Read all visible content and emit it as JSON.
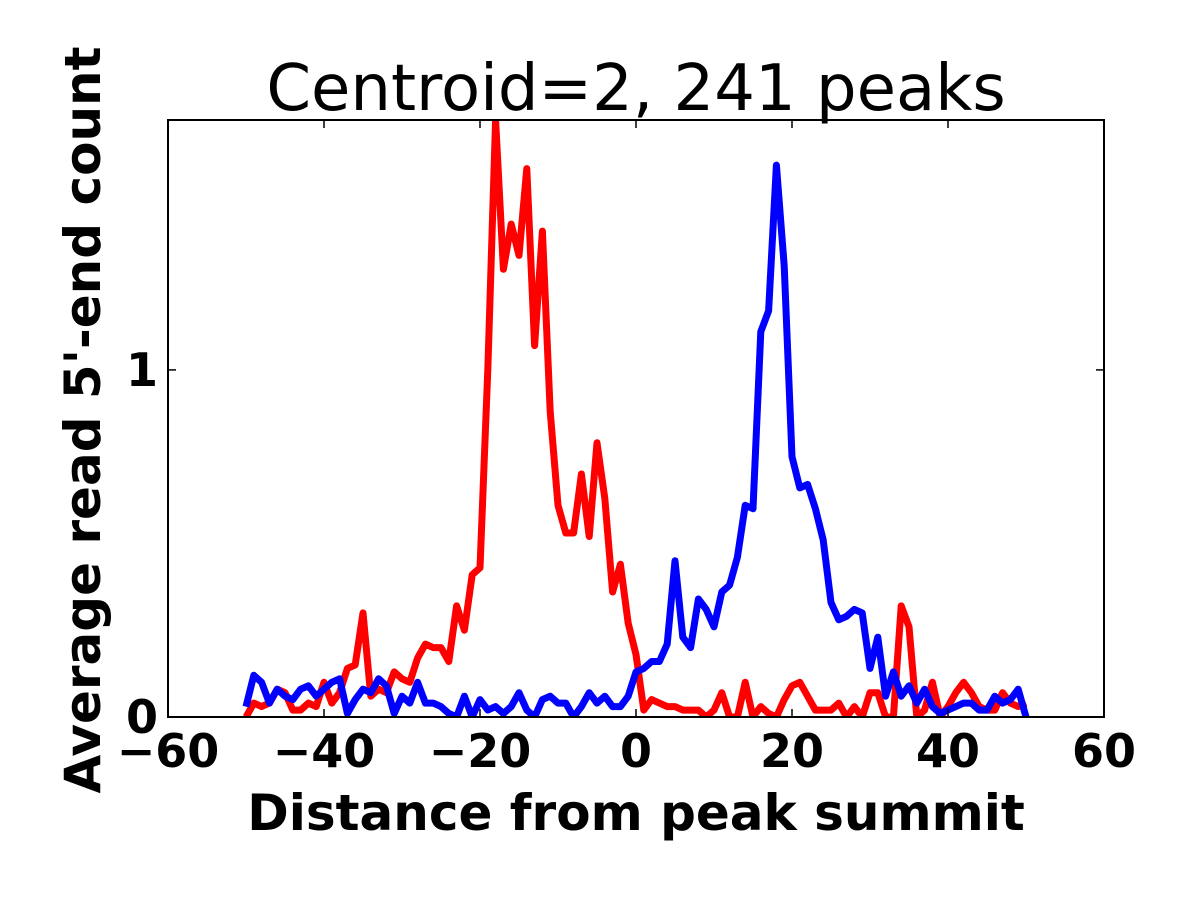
{
  "chart_data": {
    "type": "line",
    "title": "Centroid=2, 241 peaks",
    "xlabel": "Distance from peak summit",
    "ylabel": "Average read 5'-end count",
    "xlim": [
      -60,
      60
    ],
    "ylim": [
      0,
      1.72
    ],
    "x_ticks": [
      -60,
      -40,
      -20,
      0,
      20,
      40,
      60
    ],
    "x_tick_labels": [
      "−60",
      "−40",
      "−20",
      "0",
      "20",
      "40",
      "60"
    ],
    "y_ticks": [
      0,
      1
    ],
    "y_tick_labels": [
      "0",
      "1"
    ],
    "grid": false,
    "legend": "none",
    "series": [
      {
        "color": "#ff0000",
        "x": [
          -50,
          -49,
          -48,
          -47,
          -46,
          -45,
          -44,
          -43,
          -42,
          -41,
          -40,
          -39,
          -38,
          -37,
          -36,
          -35,
          -34,
          -33,
          -32,
          -31,
          -30,
          -29,
          -28,
          -27,
          -26,
          -25,
          -24,
          -23,
          -22,
          -21,
          -20,
          -19,
          -18,
          -17,
          -16,
          -15,
          -14,
          -13,
          -12,
          -11,
          -10,
          -9,
          -8,
          -7,
          -6,
          -5,
          -4,
          -3,
          -2,
          -1,
          0,
          1,
          2,
          3,
          4,
          5,
          6,
          7,
          8,
          9,
          10,
          11,
          12,
          13,
          14,
          15,
          16,
          17,
          18,
          19,
          20,
          21,
          22,
          23,
          24,
          25,
          26,
          27,
          28,
          29,
          30,
          31,
          32,
          33,
          34,
          35,
          36,
          37,
          38,
          39,
          40,
          41,
          42,
          43,
          44,
          45,
          46,
          47,
          48,
          49,
          50
        ],
        "values": [
          0.0,
          0.04,
          0.03,
          0.04,
          0.08,
          0.07,
          0.02,
          0.02,
          0.04,
          0.03,
          0.1,
          0.04,
          0.07,
          0.14,
          0.15,
          0.3,
          0.06,
          0.08,
          0.07,
          0.13,
          0.11,
          0.1,
          0.17,
          0.21,
          0.2,
          0.2,
          0.16,
          0.32,
          0.25,
          0.41,
          0.43,
          1.0,
          1.72,
          1.29,
          1.42,
          1.33,
          1.58,
          1.07,
          1.4,
          0.88,
          0.61,
          0.53,
          0.53,
          0.7,
          0.52,
          0.79,
          0.63,
          0.36,
          0.44,
          0.27,
          0.18,
          0.02,
          0.05,
          0.04,
          0.03,
          0.03,
          0.02,
          0.02,
          0.02,
          0.0,
          0.02,
          0.07,
          0.0,
          0.0,
          0.1,
          0.0,
          0.03,
          0.01,
          0.0,
          0.05,
          0.09,
          0.1,
          0.06,
          0.02,
          0.02,
          0.02,
          0.04,
          0.0,
          0.03,
          0.0,
          0.07,
          0.07,
          0.0,
          0.0,
          0.32,
          0.26,
          0.0,
          0.02,
          0.1,
          0.0,
          0.03,
          0.07,
          0.1,
          0.07,
          0.03,
          0.02,
          0.02,
          0.07,
          0.04,
          0.03,
          0.04
        ]
      },
      {
        "color": "#0000ff",
        "x": [
          -50,
          -49,
          -48,
          -47,
          -46,
          -45,
          -44,
          -43,
          -42,
          -41,
          -40,
          -39,
          -38,
          -37,
          -36,
          -35,
          -34,
          -33,
          -32,
          -31,
          -30,
          -29,
          -28,
          -27,
          -26,
          -25,
          -24,
          -23,
          -22,
          -21,
          -20,
          -19,
          -18,
          -17,
          -16,
          -15,
          -14,
          -13,
          -12,
          -11,
          -10,
          -9,
          -8,
          -7,
          -6,
          -5,
          -4,
          -3,
          -2,
          -1,
          0,
          1,
          2,
          3,
          4,
          5,
          6,
          7,
          8,
          9,
          10,
          11,
          12,
          13,
          14,
          15,
          16,
          17,
          18,
          19,
          20,
          21,
          22,
          23,
          24,
          25,
          26,
          27,
          28,
          29,
          30,
          31,
          32,
          33,
          34,
          35,
          36,
          37,
          38,
          39,
          40,
          41,
          42,
          43,
          44,
          45,
          46,
          47,
          48,
          49,
          50
        ],
        "values": [
          0.03,
          0.12,
          0.1,
          0.04,
          0.08,
          0.06,
          0.05,
          0.08,
          0.09,
          0.06,
          0.08,
          0.1,
          0.11,
          0.01,
          0.05,
          0.08,
          0.07,
          0.11,
          0.09,
          0.01,
          0.06,
          0.04,
          0.1,
          0.04,
          0.04,
          0.03,
          0.01,
          0.0,
          0.06,
          0.0,
          0.05,
          0.02,
          0.03,
          0.01,
          0.03,
          0.07,
          0.02,
          0.0,
          0.05,
          0.06,
          0.04,
          0.04,
          0.0,
          0.03,
          0.07,
          0.04,
          0.06,
          0.03,
          0.03,
          0.06,
          0.13,
          0.14,
          0.16,
          0.16,
          0.21,
          0.45,
          0.23,
          0.2,
          0.34,
          0.31,
          0.26,
          0.36,
          0.38,
          0.46,
          0.61,
          0.6,
          1.11,
          1.17,
          1.59,
          1.3,
          0.75,
          0.66,
          0.67,
          0.6,
          0.51,
          0.33,
          0.28,
          0.29,
          0.31,
          0.3,
          0.14,
          0.23,
          0.06,
          0.13,
          0.06,
          0.09,
          0.04,
          0.08,
          0.03,
          0.01,
          0.02,
          0.03,
          0.04,
          0.04,
          0.02,
          0.02,
          0.06,
          0.04,
          0.05,
          0.08,
          0.0
        ]
      }
    ]
  }
}
